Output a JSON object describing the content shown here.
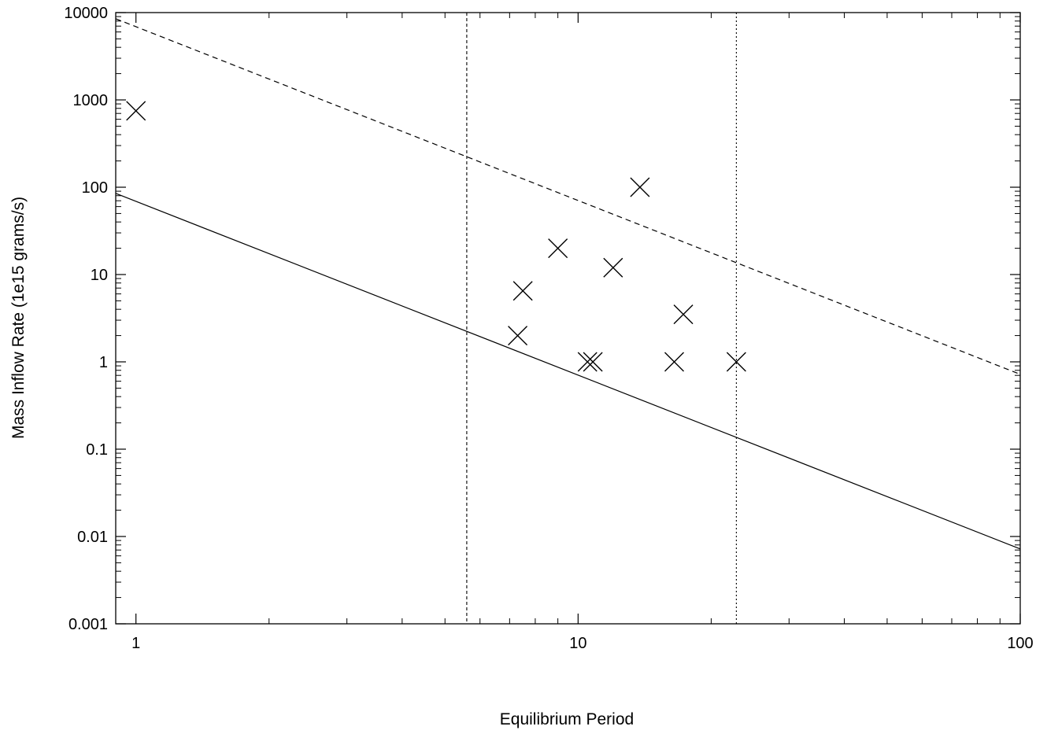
{
  "chart_data": {
    "type": "scatter",
    "title": "",
    "xlabel": "Equilibrium Period",
    "ylabel": "Mass Inflow Rate (1e15 grams/s)",
    "x_scale": "log",
    "y_scale": "log",
    "xlim": [
      0.9,
      100
    ],
    "ylim": [
      0.001,
      10000
    ],
    "grid": false,
    "x_ticks": [
      {
        "value": 1,
        "label": "1"
      },
      {
        "value": 10,
        "label": "10"
      },
      {
        "value": 100,
        "label": "100"
      }
    ],
    "y_ticks": [
      {
        "value": 0.001,
        "label": "0.001"
      },
      {
        "value": 0.01,
        "label": "0.01"
      },
      {
        "value": 0.1,
        "label": "0.1"
      },
      {
        "value": 1,
        "label": "1"
      },
      {
        "value": 10,
        "label": "10"
      },
      {
        "value": 100,
        "label": "100"
      },
      {
        "value": 1000,
        "label": "1000"
      },
      {
        "value": 10000,
        "label": "10000"
      }
    ],
    "points": [
      {
        "x": 1.0,
        "y": 750
      },
      {
        "x": 7.3,
        "y": 2.0
      },
      {
        "x": 7.5,
        "y": 6.5
      },
      {
        "x": 9.0,
        "y": 20
      },
      {
        "x": 10.5,
        "y": 1.0
      },
      {
        "x": 10.8,
        "y": 1.0
      },
      {
        "x": 12.0,
        "y": 12
      },
      {
        "x": 13.8,
        "y": 100
      },
      {
        "x": 16.5,
        "y": 1.0
      },
      {
        "x": 17.3,
        "y": 3.5
      },
      {
        "x": 22.8,
        "y": 1.0
      }
    ],
    "lines": [
      {
        "style": "solid",
        "x": [
          0.9,
          100
        ],
        "y": [
          85,
          0.0072
        ]
      },
      {
        "style": "dashed",
        "x": [
          0.9,
          100
        ],
        "y": [
          8500,
          0.72
        ]
      }
    ],
    "vlines": [
      {
        "style": "dashed",
        "x": 5.6
      },
      {
        "style": "dotted",
        "x": 22.8
      }
    ],
    "colors": {
      "ink": "#000000",
      "background": "#ffffff"
    }
  }
}
